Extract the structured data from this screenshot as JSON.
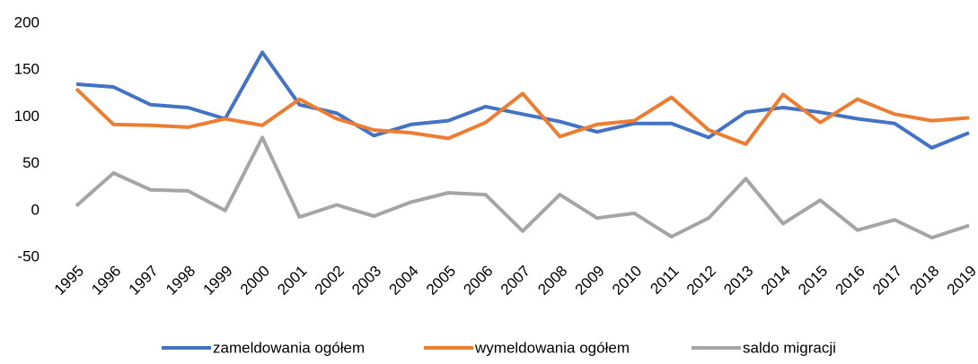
{
  "chart_data": {
    "type": "line",
    "categories": [
      "1995",
      "1996",
      "1997",
      "1998",
      "1999",
      "2000",
      "2001",
      "2002",
      "2003",
      "2004",
      "2005",
      "2006",
      "2007",
      "2008",
      "2009",
      "2010",
      "2011",
      "2012",
      "2013",
      "2014",
      "2015",
      "2016",
      "2017",
      "2018",
      "2019"
    ],
    "series": [
      {
        "name": "zameldowania ogółem",
        "color": "#4472c4",
        "values": [
          135,
          132,
          113,
          110,
          98,
          169,
          113,
          104,
          80,
          92,
          96,
          111,
          103,
          95,
          84,
          93,
          93,
          78,
          105,
          110,
          105,
          98,
          93,
          67,
          83
        ]
      },
      {
        "name": "wymeldowania ogółem",
        "color": "#ed7d31",
        "values": [
          130,
          92,
          91,
          89,
          98,
          91,
          119,
          98,
          86,
          83,
          77,
          94,
          125,
          79,
          92,
          96,
          121,
          86,
          71,
          124,
          94,
          119,
          103,
          96,
          99
        ]
      },
      {
        "name": "saldo migracji",
        "color": "#a5a5a5",
        "values": [
          5,
          40,
          22,
          21,
          0,
          78,
          -7,
          6,
          -6,
          9,
          19,
          17,
          -22,
          17,
          -8,
          -3,
          -28,
          -8,
          34,
          -14,
          11,
          -21,
          -10,
          -29,
          -16
        ]
      }
    ],
    "ylim": [
      -50,
      200
    ],
    "yticks": [
      -50,
      0,
      50,
      100,
      150,
      200
    ],
    "grid": false,
    "legend": "bottom"
  }
}
